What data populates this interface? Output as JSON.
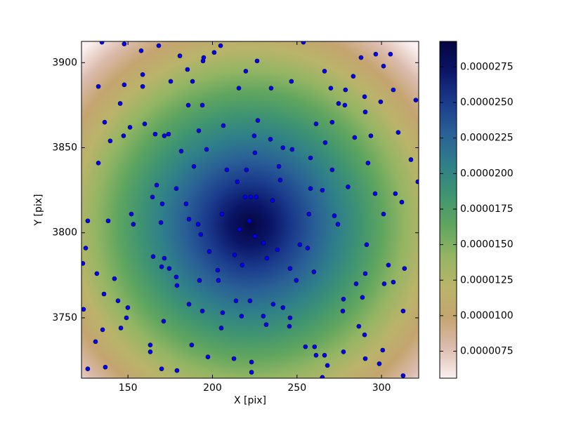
{
  "chart_data": {
    "type": "scatter",
    "xlabel": "X [pix]",
    "ylabel": "Y [pix]",
    "xlim": [
      122.5,
      322
    ],
    "ylim": [
      3714.5,
      3912.5
    ],
    "xticks": [
      150,
      200,
      250,
      300
    ],
    "yticks": [
      3750,
      3800,
      3850,
      3900
    ],
    "color": "#0000ff",
    "x": [
      134.6,
      147.8,
      168.2,
      253.8,
      157.8,
      204.8,
      201.0,
      180.7,
      194.8,
      219.7,
      226.4,
      266.3,
      283.3,
      287.9,
      296.6,
      305.3,
      301.2,
      185.2,
      158.7,
      194.4,
      132.5,
      147.8,
      158.7,
      175.3,
      188.2,
      215.6,
      234.7,
      246.7,
      270.0,
      278.7,
      307.0,
      278.3,
      274.6,
      290.0,
      299.5,
      320.3,
      145.4,
      185.7,
      194.0,
      151.2,
      159.9,
      136.2,
      166.1,
      171.5,
      174.0,
      191.9,
      206.4,
      226.8,
      261.3,
      270.8,
      266.7,
      290.4,
      284.1,
      293.7,
      309.9,
      139.5,
      147.4,
      224.7,
      234.3,
      181.5,
      196.5,
      225.1,
      241.7,
      247.1,
      258.0,
      270.8,
      292.0,
      132.5,
      189.0,
      208.5,
      220.1,
      239.3,
      240.1,
      317.4,
      167.0,
      178.6,
      214.7,
      225.9,
      235.5,
      219.3,
      222.6,
      258.0,
      265.0,
      280.2,
      296.2,
      308.2,
      312.0,
      321.5,
      164.5,
      170.3,
      184.4,
      152.0,
      186.1,
      205.6,
      257.1,
      272.1,
      301.2,
      126.2,
      138.3,
      153.2,
      169.5,
      191.5,
      274.2,
      216.0,
      221.8,
      193.1,
      225.1,
      230.1,
      251.7,
      256.3,
      291.2,
      125.0,
      198.1,
      238.4,
      213.1,
      164.9,
      171.5,
      232.2,
      174.4,
      169.9,
      203.1,
      217.6,
      245.9,
      260.0,
      304.1,
      313.6,
      123.3,
      131.6,
      142.0,
      178.6,
      179.0,
      192.3,
      203.5,
      249.6,
      285.0,
      290.4,
      301.6,
      307.0,
      135.8,
      144.1,
      149.9,
      186.1,
      213.9,
      222.2,
      235.9,
      241.7,
      277.5,
      288.7,
      277.1,
      123.7,
      135.0,
      149.1,
      145.8,
      171.1,
      194.0,
      206.0,
      217.2,
      230.1,
      231.8,
      245.9,
      245.5,
      205.2,
      286.6,
      290.0,
      312.8,
      130.8,
      126.2,
      136.6,
      163.2,
      163.2,
      169.9,
      179.0,
      187.7,
      197.3,
      212.7,
      223.1,
      223.1,
      255.0,
      260.4,
      261.3,
      266.3,
      268.0,
      277.5,
      290.4,
      298.7,
      300.7,
      265.0,
      312.8
    ],
    "values": [
      3912,
      3911,
      3910,
      3912,
      3907,
      3910,
      3906,
      3904,
      3903,
      3895,
      3901,
      3895,
      3892,
      3903,
      3905,
      3905,
      3898,
      3896,
      3893,
      3901,
      3886,
      3887,
      3886,
      3889,
      3889,
      3885,
      3885,
      3889,
      3885,
      3884,
      3884,
      3875,
      3876,
      3880,
      3877,
      3878,
      3876,
      3875,
      3875,
      3862,
      3864,
      3865,
      3858,
      3857,
      3858,
      3860,
      3863,
      3866,
      3864,
      3865,
      3853,
      3871,
      3856,
      3857,
      3859,
      3854,
      3857,
      3857,
      3855,
      3848,
      3849,
      3847,
      3850,
      3849,
      3844,
      3837,
      3841,
      3841,
      3839,
      3837,
      3837,
      3839,
      3831,
      3843,
      3828,
      3826,
      3830,
      3821,
      3819,
      3821,
      3821,
      3826,
      3825,
      3827,
      3823,
      3823,
      3818,
      3830,
      3821,
      3817,
      3817,
      3811,
      3808,
      3811,
      3811,
      3810,
      3811,
      3807,
      3807,
      3805,
      3806,
      3805,
      3805,
      3802,
      3807,
      3799,
      3798,
      3794,
      3793,
      3791,
      3793,
      3791,
      3789,
      3790,
      3787,
      3786,
      3785,
      3785,
      3779,
      3780,
      3778,
      3781,
      3779,
      3777,
      3781,
      3779,
      3782,
      3776,
      3773,
      3774,
      3769,
      3772,
      3772,
      3772,
      3770,
      3776,
      3770,
      3771,
      3764,
      3760,
      3756,
      3758,
      3760,
      3760,
      3758,
      3756,
      3761,
      3762,
      3754,
      3755,
      3743,
      3750,
      3744,
      3748,
      3754,
      3753,
      3751,
      3751,
      3746,
      3750,
      3745,
      3744,
      3745,
      3740,
      3754,
      3736,
      3720,
      3721,
      3734,
      3730,
      3720,
      3719,
      3734,
      3727,
      3726,
      3724,
      3718,
      3733,
      3733,
      3728,
      3728,
      3722,
      3730,
      3726,
      3723,
      3731,
      3715,
      3716
    ],
    "colorbar": {
      "clim": [
        5.6e-06,
        2.93e-05
      ],
      "ticks": [
        {
          "value": 7.5e-06,
          "label": "0.0000075"
        },
        {
          "value": 1e-05,
          "label": "0.0000100"
        },
        {
          "value": 1.25e-05,
          "label": "0.0000125"
        },
        {
          "value": 1.5e-05,
          "label": "0.0000150"
        },
        {
          "value": 1.75e-05,
          "label": "0.0000175"
        },
        {
          "value": 2e-05,
          "label": "0.0000200"
        },
        {
          "value": 2.25e-05,
          "label": "0.0000225"
        },
        {
          "value": 2.5e-05,
          "label": "0.0000250"
        },
        {
          "value": 2.75e-05,
          "label": "0.0000275"
        }
      ],
      "colormap": [
        "#fbf1f1",
        "#dcbcae",
        "#c4a46f",
        "#b9b46a",
        "#93b563",
        "#5fa55f",
        "#3f9471",
        "#2f7f8a",
        "#2a6096",
        "#1b3c8d",
        "#0b1669",
        "#050540"
      ]
    }
  }
}
